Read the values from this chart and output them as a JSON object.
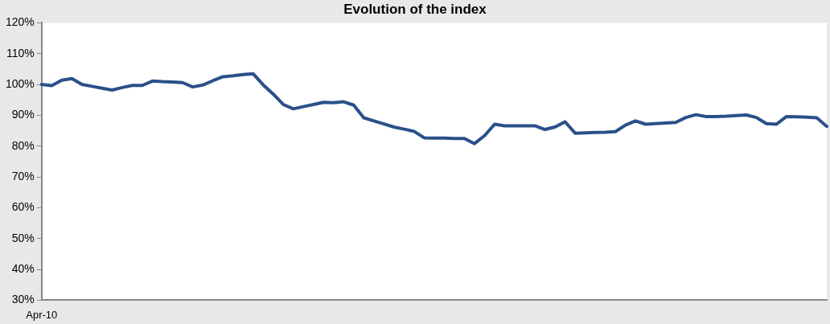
{
  "chart_data": {
    "type": "line",
    "title": "Evolution of the index",
    "categories": [
      "Apr-10",
      null,
      null,
      null,
      null,
      null,
      null,
      null,
      null,
      null,
      null,
      null,
      null,
      null,
      null,
      null,
      null,
      null,
      null,
      null,
      null,
      null,
      null,
      null,
      null,
      null,
      null,
      null,
      null,
      null,
      null,
      null,
      null,
      null,
      null,
      null,
      null,
      null,
      null,
      null,
      null,
      null,
      null,
      null,
      null,
      null,
      null,
      null,
      null,
      null,
      null,
      null,
      null,
      null,
      null,
      null,
      null,
      null,
      null,
      null,
      null,
      null,
      null,
      null,
      null,
      null,
      null,
      null,
      null,
      null,
      null,
      null,
      null,
      null,
      null,
      null,
      null,
      null,
      null
    ],
    "series": [
      {
        "color": "#2a5089",
        "values": [
          100.0,
          99.6,
          101.4,
          101.9,
          100.0,
          99.4,
          98.8,
          98.2,
          99.0,
          99.7,
          99.7,
          101.1,
          100.9,
          100.8,
          100.6,
          99.2,
          99.8,
          101.2,
          102.5,
          102.8,
          103.2,
          103.5,
          99.9,
          96.9,
          93.5,
          92.1,
          92.8,
          93.5,
          94.2,
          94.1,
          94.4,
          93.3,
          89.2,
          88.2,
          87.2,
          86.2,
          85.5,
          84.8,
          82.7,
          82.6,
          82.6,
          82.5,
          82.5,
          80.8,
          83.4,
          87.1,
          86.6,
          86.6,
          86.6,
          86.6,
          85.4,
          86.2,
          87.9,
          84.2,
          84.3,
          84.4,
          84.5,
          84.7,
          86.8,
          88.2,
          87.1,
          87.3,
          87.5,
          87.7,
          89.3,
          90.2,
          89.6,
          89.6,
          89.7,
          89.9,
          90.1,
          89.3,
          87.3,
          87.1,
          89.6,
          89.5,
          89.4,
          89.2,
          86.4
        ]
      }
    ],
    "ylim": [
      30,
      120
    ],
    "yticks": [
      {
        "value": 30,
        "label": "30%"
      },
      {
        "value": 40,
        "label": "40%"
      },
      {
        "value": 50,
        "label": "50%"
      },
      {
        "value": 60,
        "label": "60%"
      },
      {
        "value": 70,
        "label": "70%"
      },
      {
        "value": 80,
        "label": "80%"
      },
      {
        "value": 90,
        "label": "90%"
      },
      {
        "value": 100,
        "label": "100%"
      },
      {
        "value": 110,
        "label": "110%"
      },
      {
        "value": 120,
        "label": "120%"
      }
    ],
    "grid": false,
    "legend": false,
    "marker": "none",
    "line_style": "solid"
  }
}
